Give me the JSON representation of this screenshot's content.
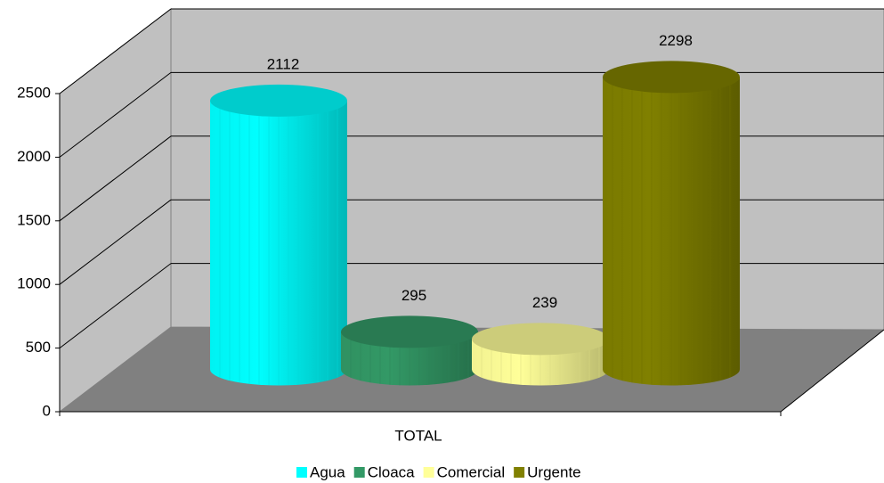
{
  "chart_data": {
    "type": "bar3d-cylinder",
    "categories": [
      "TOTAL"
    ],
    "series": [
      {
        "name": "Agua",
        "color": "#00ffff",
        "values": [
          2112
        ]
      },
      {
        "name": "Cloaca",
        "color": "#339966",
        "values": [
          295
        ]
      },
      {
        "name": "Comercial",
        "color": "#ffff99",
        "values": [
          239
        ]
      },
      {
        "name": "Urgente",
        "color": "#808000",
        "values": [
          2298
        ]
      }
    ],
    "ylim": [
      0,
      2500
    ],
    "yticks": [
      0,
      500,
      1000,
      1500,
      2000,
      2500
    ],
    "grid": true,
    "legend": "bottom"
  }
}
